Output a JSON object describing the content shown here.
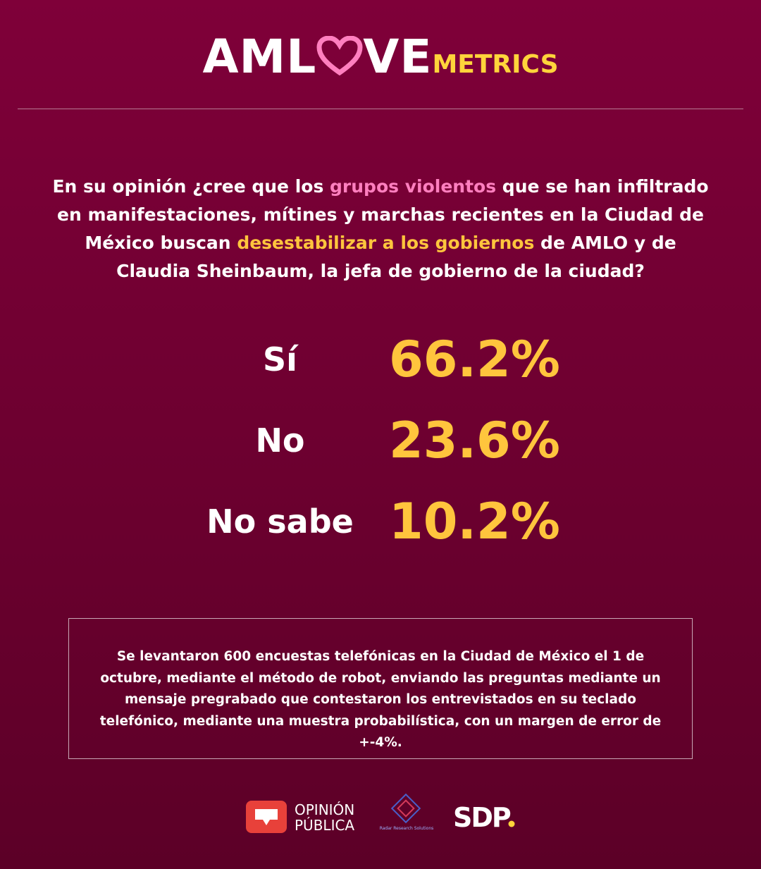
{
  "logo": {
    "part1": "AML",
    "part2": "VE",
    "part3": "METRICS"
  },
  "question": [
    "En su opinión ¿cree que los ",
    "grupos violentos",
    " que se han infiltrado en manifestaciones, mítines y marchas recientes en la Ciudad de México buscan ",
    "desestabilizar a los gobiernos",
    " de AMLO y de Claudia Sheinbaum, la jefa de gobierno de la ciudad?"
  ],
  "results": [
    {
      "label": "Sí",
      "value": "66.2%"
    },
    {
      "label": "No",
      "value": "23.6%"
    },
    {
      "label": "No sabe",
      "value": "10.2%"
    }
  ],
  "note": "Se levantaron 600 encuestas telefónicas en la Ciudad de México el 1 de octubre, mediante el método de robot, enviando las preguntas mediante un mensaje pregrabado que contestaron los entrevistados en su teclado telefónico, mediante una muestra probabilística, con un margen de error de +-4%.",
  "footer": {
    "opinion": "OPINIÓN",
    "publica": "PÚBLICA",
    "radar": "Radar Research Solutions",
    "sdp": "SDP"
  }
}
